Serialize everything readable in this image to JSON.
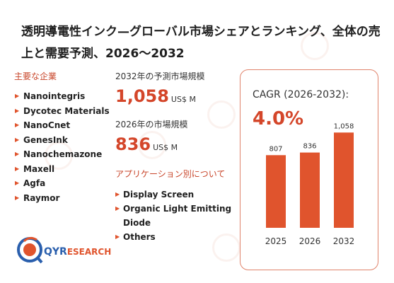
{
  "title": "透明導電性インク—グローバル市場シェアとランキング、全体の売上と需要予測、2026〜2032",
  "companies": {
    "heading": "主要な企業",
    "items": [
      "Nanointegris",
      "Dycotec Materials",
      "NanoCnet",
      "GenesInk",
      "Nanochemazone",
      "Maxell",
      "Agfa",
      "Raymor"
    ]
  },
  "market_2032": {
    "label": "2032年の予測市場規模",
    "value": "1,058",
    "unit": "US$ M"
  },
  "market_2026": {
    "label": "2026年の市場規模",
    "value": "836",
    "unit": "US$ M"
  },
  "applications": {
    "heading": "アプリケーション別について",
    "items": [
      "Display Screen",
      "Organic Light Emitting Diode",
      "Others"
    ]
  },
  "cagr": {
    "label": "CAGR (2026-2032):",
    "value": "4.0%"
  },
  "logo": {
    "brand": "QYR",
    "suffix": "ESEARCH"
  },
  "colors": {
    "accent": "#d4462a",
    "bar": "#e0542d",
    "card_border": "#e0836b",
    "logo_blue": "#2a5fad"
  },
  "chart_data": {
    "type": "bar",
    "categories": [
      "2025",
      "2026",
      "2032"
    ],
    "values": [
      807,
      836,
      1058
    ],
    "value_labels": [
      "807",
      "836",
      "1,058"
    ],
    "title": "",
    "xlabel": "",
    "ylabel": "",
    "ylim": [
      0,
      1100
    ],
    "grid": false
  }
}
